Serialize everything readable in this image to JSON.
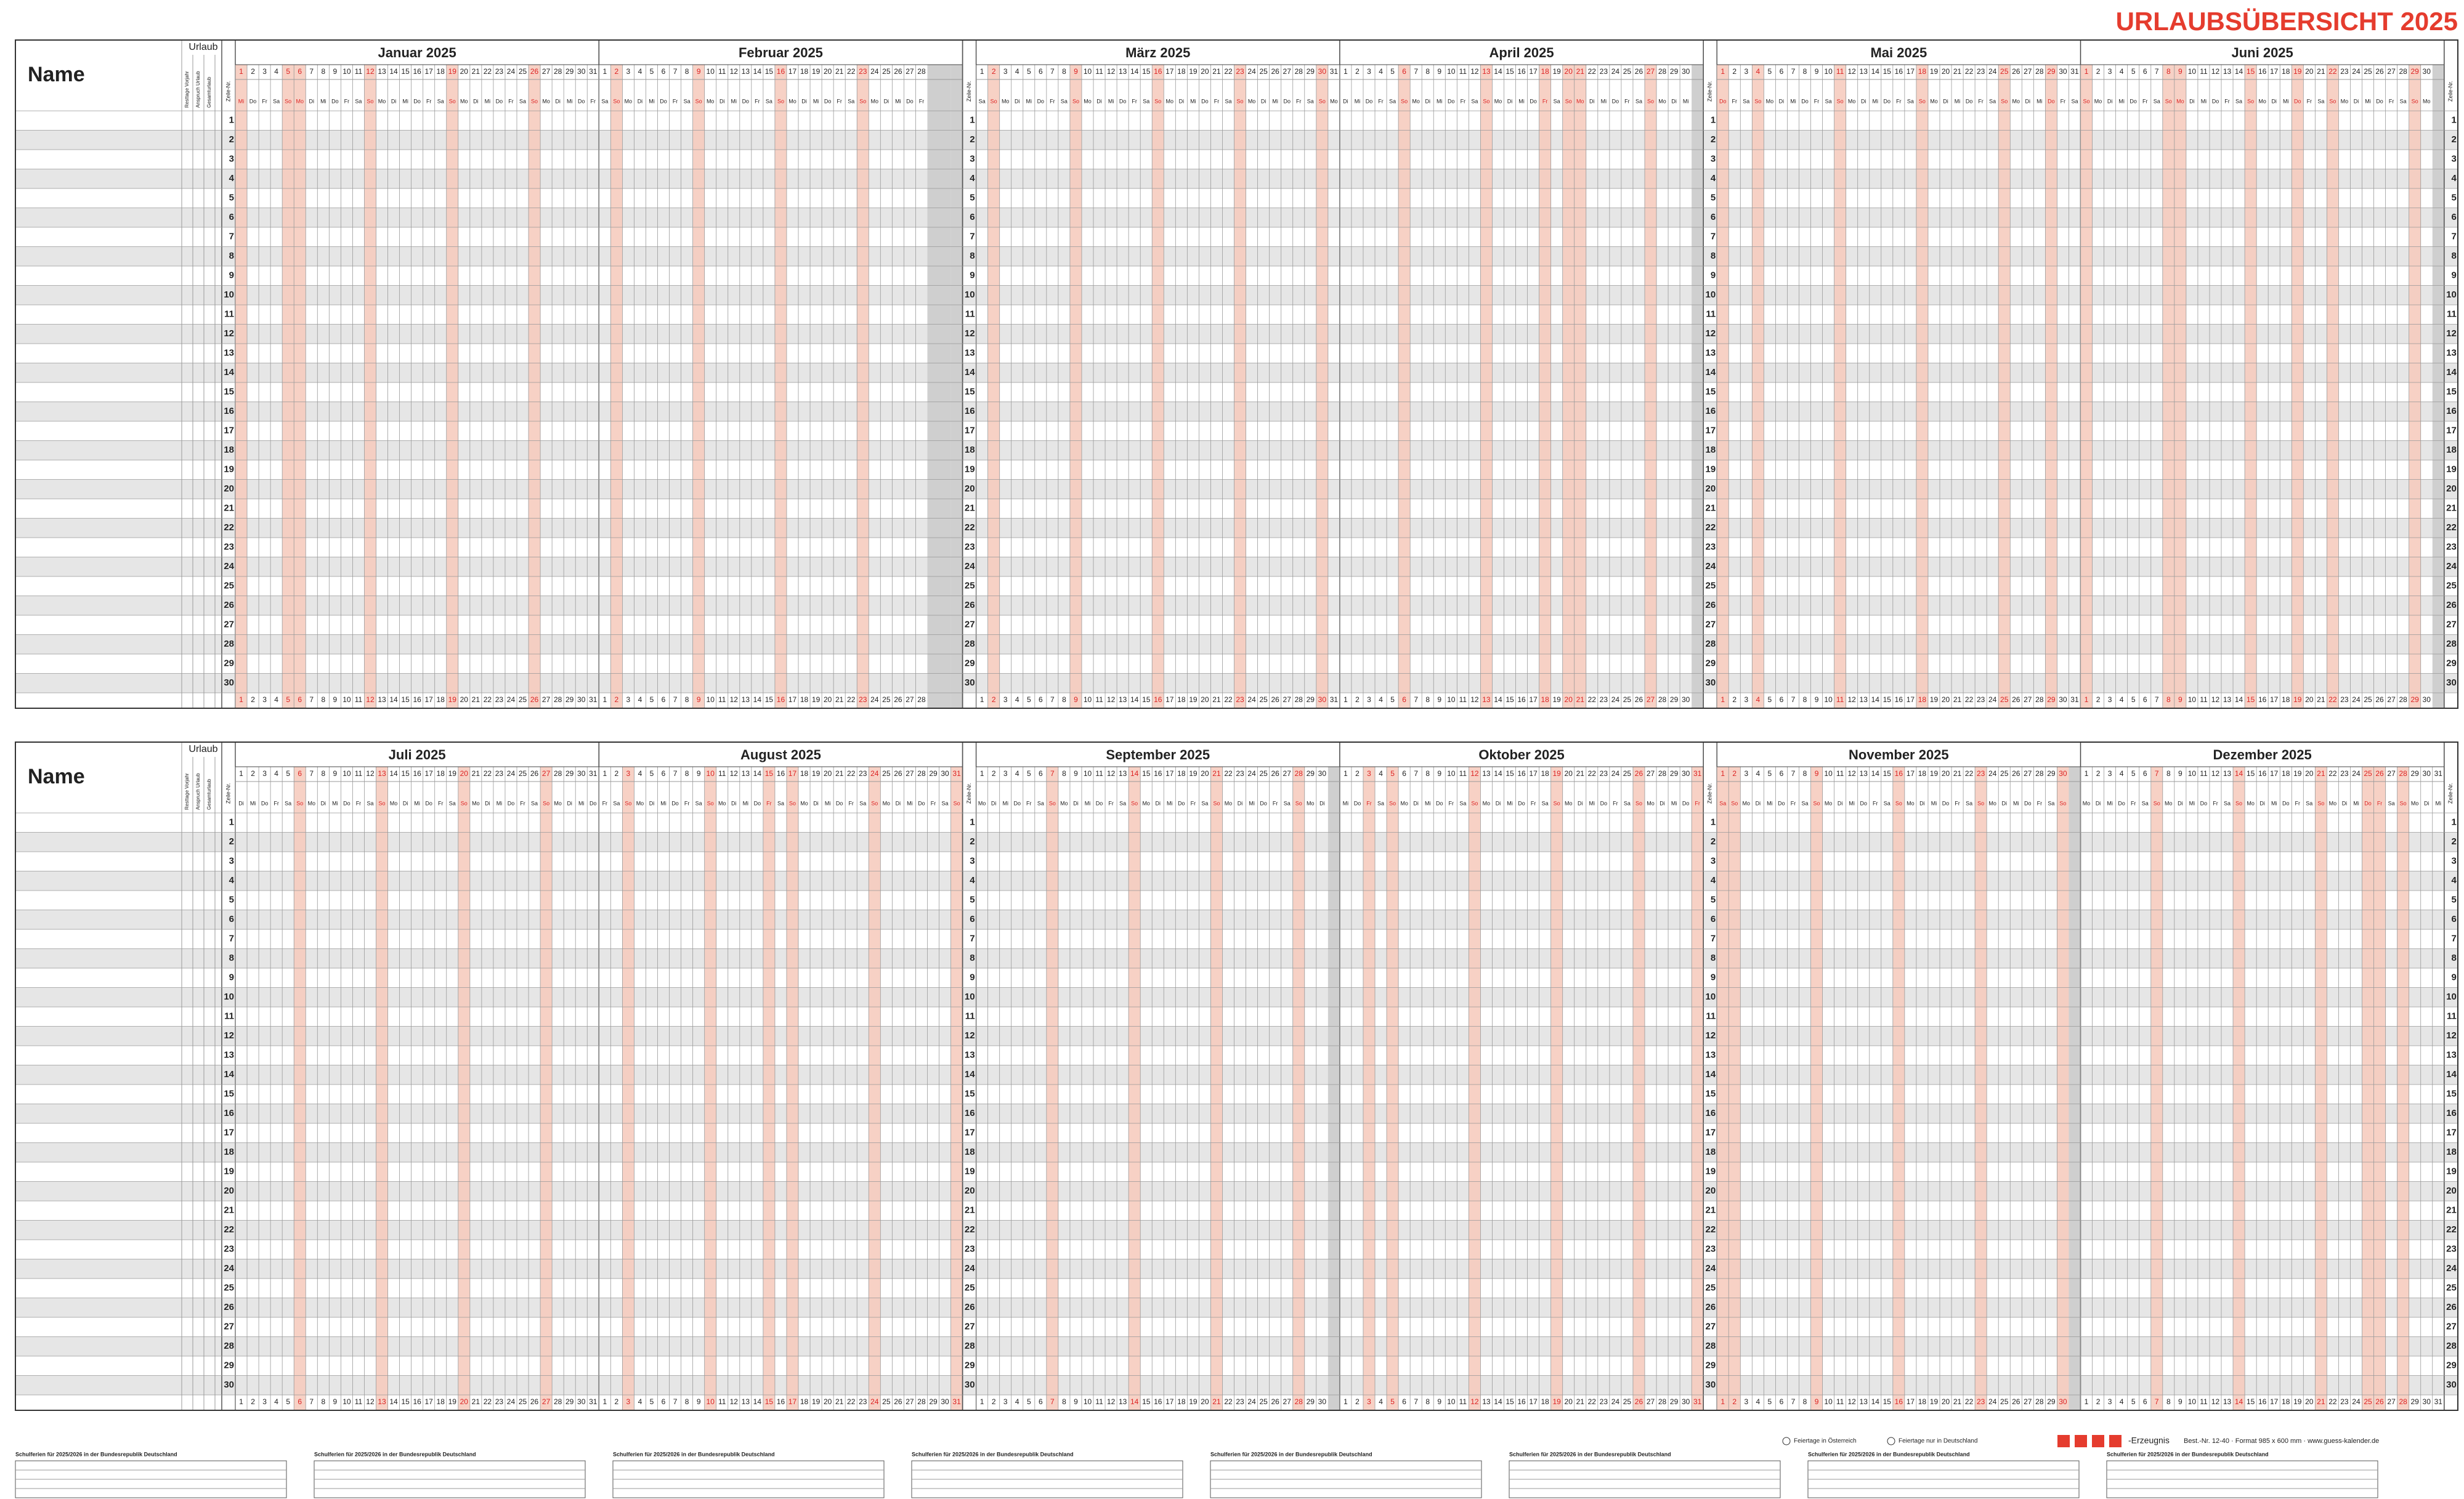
{
  "header": {
    "title": "URLAUBSÜBERSICHT 2025"
  },
  "labels": {
    "name": "Name",
    "urlaub": "Urlaub",
    "row_col": "Zeile-Nr.",
    "urlaub_cols": [
      "Resttage Vorjahr",
      "Anspruch Urlaub",
      "Gesamturlaub"
    ]
  },
  "weekdays": [
    "Mo",
    "Di",
    "Mi",
    "Do",
    "Fr",
    "Sa",
    "So"
  ],
  "day_numbers": [
    1,
    2,
    3,
    4,
    5,
    6,
    7,
    8,
    9,
    10,
    11,
    12,
    13,
    14,
    15,
    16,
    17,
    18,
    19,
    20,
    21,
    22,
    23,
    24,
    25,
    26,
    27,
    28,
    29,
    30,
    31
  ],
  "row_numbers": [
    1,
    2,
    3,
    4,
    5,
    6,
    7,
    8,
    9,
    10,
    11,
    12,
    13,
    14,
    15,
    16,
    17,
    18,
    19,
    20,
    21,
    22,
    23,
    24,
    25,
    26,
    27,
    28,
    29,
    30
  ],
  "halves": [
    {
      "months": [
        {
          "name": "Januar 2025",
          "days": 31,
          "first_weekday": 2,
          "holidays": [
            1,
            6
          ]
        },
        {
          "name": "Februar 2025",
          "days": 28,
          "first_weekday": 5,
          "holidays": []
        },
        {
          "name": "März 2025",
          "days": 31,
          "first_weekday": 5,
          "holidays": []
        },
        {
          "name": "April 2025",
          "days": 30,
          "first_weekday": 1,
          "holidays": [
            18,
            21
          ]
        },
        {
          "name": "Mai 2025",
          "days": 31,
          "first_weekday": 3,
          "holidays": [
            1,
            29
          ]
        },
        {
          "name": "Juni 2025",
          "days": 30,
          "first_weekday": 6,
          "holidays": [
            9,
            19
          ]
        }
      ]
    },
    {
      "months": [
        {
          "name": "Juli 2025",
          "days": 31,
          "first_weekday": 1,
          "holidays": []
        },
        {
          "name": "August 2025",
          "days": 31,
          "first_weekday": 4,
          "holidays": [
            15
          ]
        },
        {
          "name": "September 2025",
          "days": 30,
          "first_weekday": 0,
          "holidays": []
        },
        {
          "name": "Oktober 2025",
          "days": 31,
          "first_weekday": 2,
          "holidays": [
            3,
            31
          ]
        },
        {
          "name": "November 2025",
          "days": 30,
          "first_weekday": 5,
          "holidays": [
            1
          ]
        },
        {
          "name": "Dezember 2025",
          "days": 31,
          "first_weekday": 0,
          "holidays": [
            25,
            26
          ]
        }
      ]
    }
  ],
  "footer": {
    "legend": [
      "Feiertage in Österreich",
      "Feiertage nur in Deutschland"
    ],
    "school_title": "Schulferien für 2025/2026 in der Bundesrepublik Deutschland",
    "brand": "-Erzeugnis",
    "order": "Best.-Nr. 12-40 · Format 985 x 600 mm · www.guess-kalender.de"
  }
}
